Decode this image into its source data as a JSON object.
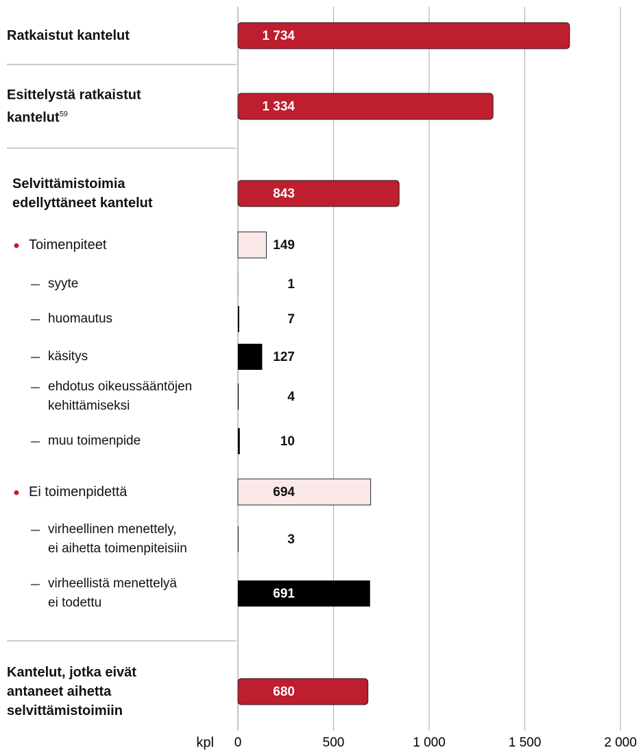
{
  "chart_data": {
    "type": "bar",
    "orientation": "horizontal",
    "categories": [
      "Ratkaistut kantelut",
      "Esittelystä ratkaistut\nkantelut",
      "Selvittämistoimia\nedellyttäneet kantelut",
      "Toimenpiteet",
      "syyte",
      "huomautus",
      "käsitys",
      "ehdotus oikeussääntöjen\nkehittämiseksi",
      "muu toimenpide",
      "Ei toimenpidettä",
      "virheellinen menettely,\nei aihetta toimenpiteisiin",
      "virheellistä menettelyä\nei todettu",
      "Kantelut, jotka eivät\nantaneet aihetta\nselvittämistoimiin"
    ],
    "category_notes": [
      null,
      "59",
      null,
      null,
      null,
      null,
      null,
      null,
      null,
      null,
      null,
      null,
      null
    ],
    "values": [
      1734,
      1334,
      843,
      149,
      1,
      7,
      127,
      4,
      10,
      694,
      3,
      691,
      680
    ],
    "value_labels": [
      "1 734",
      "1 334",
      "843",
      "149",
      "1",
      "7",
      "127",
      "4",
      "10",
      "694",
      "3",
      "691",
      "680"
    ],
    "colors": [
      "#be1e2d",
      "#be1e2d",
      "#be1e2d",
      "#fbe9ea",
      "#000000",
      "#000000",
      "#000000",
      "#000000",
      "#000000",
      "#fbe9ea",
      "#000000",
      "#000000",
      "#be1e2d"
    ],
    "xlim": [
      0,
      2000
    ],
    "xticks": [
      0,
      500,
      {
        "value": 1000,
        "label": "1 000"
      },
      {
        "value": 1500,
        "label": "1 500"
      },
      {
        "value": 2000,
        "label": "2 000"
      }
    ],
    "xlabel": "kpl",
    "grid": true
  }
}
